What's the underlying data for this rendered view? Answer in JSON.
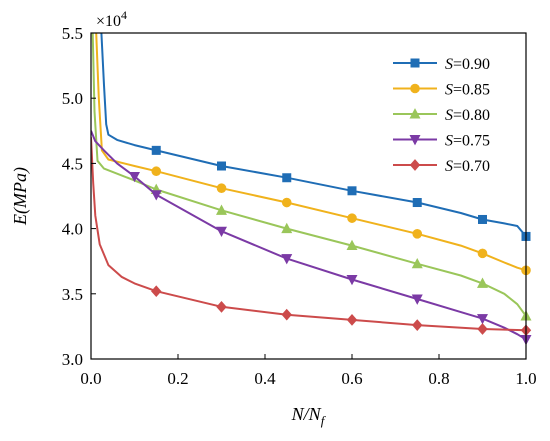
{
  "chart_data": {
    "type": "line",
    "title": "",
    "xlabel": {
      "main": "N/N",
      "sub": "f"
    },
    "ylabel": "E(MPa)",
    "xlim": [
      0.0,
      1.0
    ],
    "ylim": [
      3.0,
      5.5
    ],
    "x_ticks": [
      "0.0",
      "0.2",
      "0.4",
      "0.6",
      "0.8",
      "1.0"
    ],
    "y_ticks": [
      "3.0",
      "3.5",
      "4.0",
      "4.5",
      "5.0",
      "5.5"
    ],
    "y_multiplier": {
      "base": "×10",
      "exp": "4"
    },
    "grid": false,
    "legend_position": "top-right",
    "series": [
      {
        "name": "S=0.90",
        "legend_var": "S",
        "legend_val": "=0.90",
        "color": "#1f6db5",
        "marker": "square",
        "curve": [
          [
            0.024,
            5.5
          ],
          [
            0.03,
            5.1
          ],
          [
            0.035,
            4.8
          ],
          [
            0.04,
            4.72
          ],
          [
            0.06,
            4.68
          ],
          [
            0.1,
            4.64
          ],
          [
            0.15,
            4.6
          ],
          [
            0.3,
            4.48
          ],
          [
            0.45,
            4.39
          ],
          [
            0.6,
            4.29
          ],
          [
            0.75,
            4.2
          ],
          [
            0.85,
            4.12
          ],
          [
            0.9,
            4.07
          ],
          [
            0.95,
            4.04
          ],
          [
            0.98,
            4.02
          ],
          [
            1.0,
            3.94
          ]
        ],
        "markers": [
          [
            0.15,
            4.6
          ],
          [
            0.3,
            4.48
          ],
          [
            0.45,
            4.39
          ],
          [
            0.6,
            4.29
          ],
          [
            0.75,
            4.2
          ],
          [
            0.9,
            4.07
          ],
          [
            1.0,
            3.94
          ]
        ]
      },
      {
        "name": "S=0.85",
        "legend_var": "S",
        "legend_val": "=0.85",
        "color": "#f0b21c",
        "marker": "circle",
        "curve": [
          [
            0.012,
            5.5
          ],
          [
            0.018,
            5.0
          ],
          [
            0.025,
            4.6
          ],
          [
            0.04,
            4.53
          ],
          [
            0.1,
            4.48
          ],
          [
            0.15,
            4.44
          ],
          [
            0.3,
            4.31
          ],
          [
            0.45,
            4.2
          ],
          [
            0.6,
            4.08
          ],
          [
            0.75,
            3.96
          ],
          [
            0.85,
            3.87
          ],
          [
            0.9,
            3.81
          ],
          [
            0.95,
            3.74
          ],
          [
            0.98,
            3.7
          ],
          [
            1.0,
            3.68
          ]
        ],
        "markers": [
          [
            0.15,
            4.44
          ],
          [
            0.3,
            4.31
          ],
          [
            0.45,
            4.2
          ],
          [
            0.6,
            4.08
          ],
          [
            0.75,
            3.96
          ],
          [
            0.9,
            3.81
          ],
          [
            1.0,
            3.68
          ]
        ]
      },
      {
        "name": "S=0.80",
        "legend_var": "S",
        "legend_val": "=0.80",
        "color": "#9ac65a",
        "marker": "triangle-up",
        "curve": [
          [
            0.004,
            5.5
          ],
          [
            0.008,
            4.9
          ],
          [
            0.015,
            4.52
          ],
          [
            0.03,
            4.46
          ],
          [
            0.1,
            4.37
          ],
          [
            0.15,
            4.3
          ],
          [
            0.3,
            4.14
          ],
          [
            0.45,
            4.0
          ],
          [
            0.6,
            3.87
          ],
          [
            0.75,
            3.73
          ],
          [
            0.85,
            3.64
          ],
          [
            0.9,
            3.58
          ],
          [
            0.95,
            3.5
          ],
          [
            0.98,
            3.42
          ],
          [
            1.0,
            3.33
          ]
        ],
        "markers": [
          [
            0.15,
            4.3
          ],
          [
            0.3,
            4.14
          ],
          [
            0.45,
            4.0
          ],
          [
            0.6,
            3.87
          ],
          [
            0.75,
            3.73
          ],
          [
            0.9,
            3.58
          ],
          [
            1.0,
            3.33
          ]
        ]
      },
      {
        "name": "S=0.75",
        "legend_var": "S",
        "legend_val": "=0.75",
        "color": "#7b3aa5",
        "marker": "triangle-down",
        "curve": [
          [
            0.0,
            4.75
          ],
          [
            0.01,
            4.67
          ],
          [
            0.03,
            4.6
          ],
          [
            0.06,
            4.5
          ],
          [
            0.1,
            4.4
          ],
          [
            0.15,
            4.26
          ],
          [
            0.3,
            3.98
          ],
          [
            0.45,
            3.77
          ],
          [
            0.6,
            3.61
          ],
          [
            0.75,
            3.46
          ],
          [
            0.85,
            3.36
          ],
          [
            0.9,
            3.31
          ],
          [
            0.95,
            3.24
          ],
          [
            0.98,
            3.19
          ],
          [
            1.0,
            3.15
          ]
        ],
        "markers": [
          [
            0.1,
            4.4
          ],
          [
            0.15,
            4.26
          ],
          [
            0.3,
            3.98
          ],
          [
            0.45,
            3.77
          ],
          [
            0.6,
            3.61
          ],
          [
            0.75,
            3.46
          ],
          [
            0.9,
            3.31
          ],
          [
            1.0,
            3.15
          ]
        ]
      },
      {
        "name": "S=0.70",
        "legend_var": "S",
        "legend_val": "=0.70",
        "color": "#cc4b4b",
        "marker": "diamond",
        "curve": [
          [
            0.0,
            4.7
          ],
          [
            0.005,
            4.35
          ],
          [
            0.01,
            4.1
          ],
          [
            0.02,
            3.88
          ],
          [
            0.04,
            3.72
          ],
          [
            0.07,
            3.63
          ],
          [
            0.1,
            3.58
          ],
          [
            0.15,
            3.52
          ],
          [
            0.3,
            3.4
          ],
          [
            0.45,
            3.34
          ],
          [
            0.6,
            3.3
          ],
          [
            0.75,
            3.26
          ],
          [
            0.9,
            3.23
          ],
          [
            1.0,
            3.22
          ]
        ],
        "markers": [
          [
            0.15,
            3.52
          ],
          [
            0.3,
            3.4
          ],
          [
            0.45,
            3.34
          ],
          [
            0.6,
            3.3
          ],
          [
            0.75,
            3.26
          ],
          [
            0.9,
            3.23
          ],
          [
            1.0,
            3.22
          ]
        ]
      }
    ]
  }
}
